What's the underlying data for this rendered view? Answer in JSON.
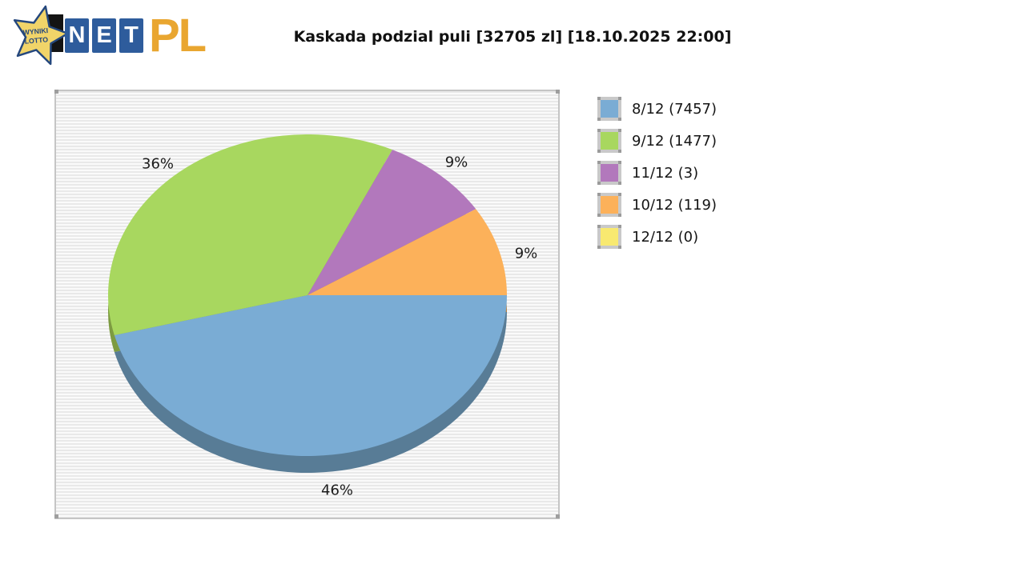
{
  "logo": {
    "star_line1": "WYNIKI",
    "star_line2": "LOTTO",
    "net_letters": [
      "N",
      "E",
      "T"
    ],
    "suffix": "PL",
    "colors": {
      "star_fill": "#f1d469",
      "star_stroke": "#24477d",
      "box_blue": "#2e5c9c",
      "letter_white": "#ffffff",
      "pl_gold": "#e9a630",
      "backdrop_black": "#141414"
    }
  },
  "header": {
    "title": "Kaskada podzial puli [32705 zl] [18.10.2025 22:00]"
  },
  "chart_data": {
    "type": "pie",
    "title": "Kaskada podzial puli [32705 zl] [18.10.2025 22:00]",
    "game": "Kaskada",
    "pool_zl": 32705,
    "draw_time": "18.10.2025 22:00",
    "style": "3d",
    "start_angle_deg": 0,
    "direction": "clockwise",
    "legend_position": "right",
    "slices": [
      {
        "label": "8/12",
        "winners": 7457,
        "percent": 46,
        "percent_label": "46%",
        "legend_label": "8/12 (7457)",
        "color": "#7aacd4",
        "side_color": "#587c96"
      },
      {
        "label": "9/12",
        "winners": 1477,
        "percent": 36,
        "percent_label": "36%",
        "legend_label": "9/12 (1477)",
        "color": "#a8d75f",
        "side_color": "#7d9b41"
      },
      {
        "label": "11/12",
        "winners": 3,
        "percent": 9,
        "percent_label": "9%",
        "legend_label": "11/12 (3)",
        "color": "#b278bc",
        "side_color": "#82578a"
      },
      {
        "label": "10/12",
        "winners": 119,
        "percent": 9,
        "percent_label": "9%",
        "legend_label": "10/12 (119)",
        "color": "#fcb15a",
        "side_color": "#b78040"
      },
      {
        "label": "12/12",
        "winners": 0,
        "percent": 0,
        "percent_label": "",
        "legend_label": "12/12 (0)",
        "color": "#f8e970",
        "side_color": "#b4a850"
      }
    ]
  }
}
